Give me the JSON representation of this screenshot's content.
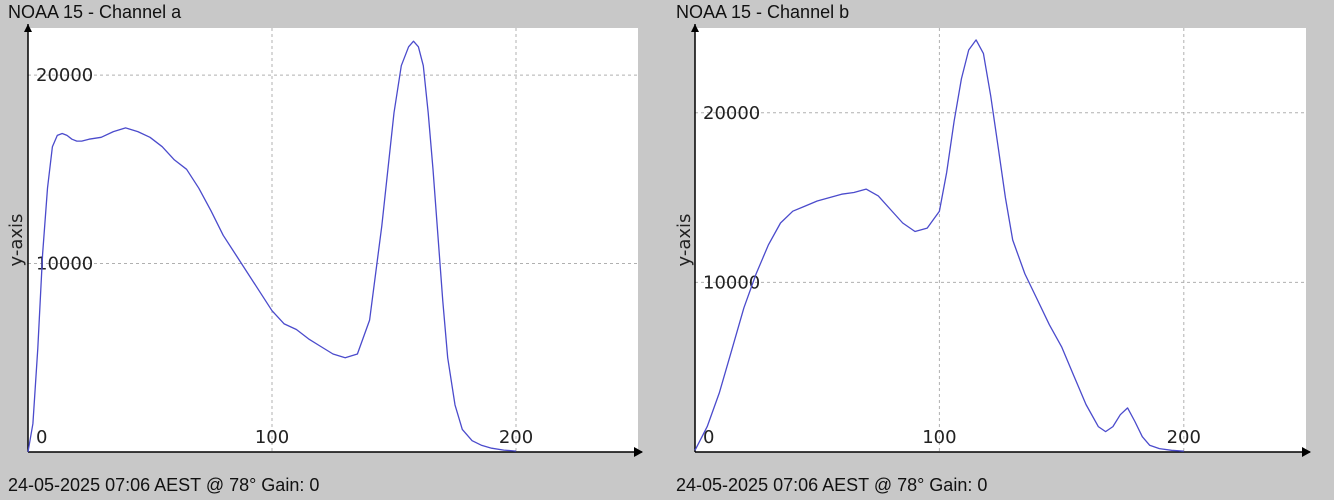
{
  "colors": {
    "background": "#c8c8c8",
    "plot_bg": "#ffffff",
    "line": "#4b4bcc",
    "grid": "#b0b0b0",
    "axis": "#000000"
  },
  "chart_data": [
    {
      "type": "line",
      "title": "NOAA 15 - Channel a",
      "footer": "24-05-2025 07:06 AEST @ 78° Gain: 0\u0003",
      "ylabel": "y-axis",
      "xlabel": "",
      "xlim": [
        0,
        250
      ],
      "ylim": [
        0,
        22500
      ],
      "xticks": [
        0,
        100,
        200
      ],
      "yticks": [
        10000,
        20000
      ],
      "grid": true,
      "series": [
        {
          "x": [
            0,
            2,
            4,
            6,
            8,
            10,
            12,
            14,
            16,
            18,
            20,
            22,
            25,
            30,
            35,
            40,
            45,
            50,
            55,
            60,
            65,
            70,
            75,
            80,
            85,
            90,
            95,
            100,
            105,
            110,
            115,
            120,
            125,
            130,
            135,
            140,
            145,
            150,
            153,
            156,
            158,
            160,
            162,
            164,
            166,
            168,
            170,
            172,
            175,
            178,
            182,
            186,
            190,
            195,
            200
          ],
          "y": [
            0,
            1500,
            5500,
            10500,
            14000,
            16200,
            16800,
            16900,
            16800,
            16600,
            16500,
            16500,
            16600,
            16700,
            17000,
            17200,
            17000,
            16700,
            16200,
            15500,
            15000,
            14000,
            12800,
            11500,
            10500,
            9500,
            8500,
            7500,
            6800,
            6500,
            6000,
            5600,
            5200,
            5000,
            5200,
            7000,
            12000,
            18000,
            20500,
            21500,
            21800,
            21500,
            20500,
            18000,
            15000,
            11500,
            8000,
            5000,
            2500,
            1200,
            600,
            350,
            200,
            100,
            50
          ]
        }
      ]
    },
    {
      "type": "line",
      "title": "NOAA 15 - Channel b",
      "footer": "24-05-2025 07:06 AEST @ 78° Gain: 0\u0003",
      "ylabel": "y-axis",
      "xlabel": "",
      "xlim": [
        0,
        250
      ],
      "ylim": [
        0,
        25000
      ],
      "xticks": [
        0,
        100,
        200
      ],
      "yticks": [
        10000,
        20000
      ],
      "grid": true,
      "series": [
        {
          "x": [
            0,
            5,
            10,
            15,
            20,
            25,
            30,
            35,
            40,
            45,
            50,
            55,
            60,
            65,
            70,
            75,
            80,
            85,
            90,
            95,
            100,
            103,
            106,
            109,
            112,
            115,
            118,
            121,
            124,
            127,
            130,
            135,
            140,
            145,
            150,
            155,
            160,
            165,
            168,
            171,
            174,
            177,
            180,
            183,
            186,
            190,
            195,
            200
          ],
          "y": [
            100,
            1500,
            3500,
            6000,
            8500,
            10500,
            12200,
            13500,
            14200,
            14500,
            14800,
            15000,
            15200,
            15300,
            15500,
            15100,
            14300,
            13500,
            13000,
            13200,
            14200,
            16500,
            19500,
            22000,
            23700,
            24300,
            23500,
            21000,
            18000,
            15000,
            12500,
            10500,
            9000,
            7500,
            6200,
            4500,
            2800,
            1500,
            1200,
            1500,
            2200,
            2600,
            1800,
            900,
            400,
            200,
            100,
            50
          ]
        }
      ]
    }
  ]
}
